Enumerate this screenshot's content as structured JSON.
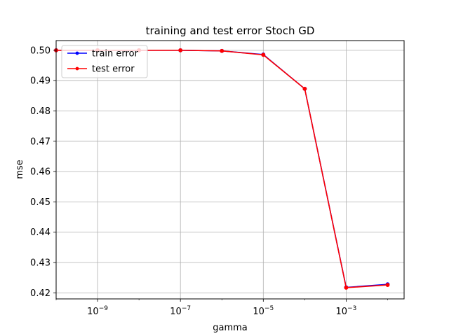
{
  "chart_data": {
    "type": "line",
    "title": "training and test error Stoch GD",
    "xlabel": "gamma",
    "ylabel": "mse",
    "xscale": "log",
    "xlim": [
      1e-10,
      0.025
    ],
    "ylim": [
      0.418,
      0.5032
    ],
    "x": [
      1e-10,
      1e-09,
      1e-08,
      1e-07,
      1e-06,
      1e-05,
      0.0001,
      0.001,
      0.01
    ],
    "x_ticks": [
      1e-09,
      1e-07,
      1e-05,
      0.001
    ],
    "x_tick_labels": [
      {
        "base": "10",
        "exp": "−9"
      },
      {
        "base": "10",
        "exp": "−7"
      },
      {
        "base": "10",
        "exp": "−5"
      },
      {
        "base": "10",
        "exp": "−3"
      }
    ],
    "y_ticks": [
      0.42,
      0.43,
      0.44,
      0.45,
      0.46,
      0.47,
      0.48,
      0.49,
      0.5
    ],
    "y_tick_labels": [
      "0.42",
      "0.43",
      "0.44",
      "0.45",
      "0.46",
      "0.47",
      "0.48",
      "0.49",
      "0.50"
    ],
    "grid": true,
    "legend_position": "top-left",
    "series": [
      {
        "name": "train error",
        "color": "#0000ff",
        "marker": "dot",
        "values": [
          0.5,
          0.5,
          0.5,
          0.5,
          0.4998,
          0.4986,
          0.4873,
          0.4218,
          0.4228
        ]
      },
      {
        "name": "test error",
        "color": "#ff0000",
        "marker": "dot",
        "values": [
          0.5,
          0.5,
          0.5,
          0.5,
          0.4998,
          0.4985,
          0.4873,
          0.4217,
          0.4226
        ]
      }
    ]
  }
}
